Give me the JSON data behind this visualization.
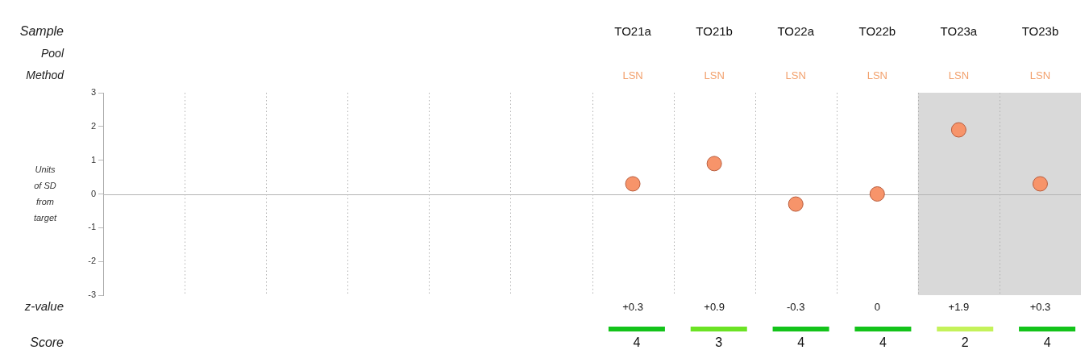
{
  "chart_data": [
    {
      "type": "scatter",
      "xlabel": "Sample",
      "ylabel": "Units of SD from target",
      "categories": [
        null,
        null,
        null,
        null,
        null,
        null,
        "TO21a",
        "TO21b",
        "TO22a",
        "TO22b",
        "TO23a",
        "TO23b"
      ],
      "series": [
        {
          "name": "z-value",
          "type": "scatter",
          "color": "#f7946a",
          "values": [
            null,
            null,
            null,
            null,
            null,
            null,
            0.3,
            0.9,
            -0.3,
            0,
            1.9,
            0.3
          ],
          "value_labels": [
            null,
            null,
            null,
            null,
            null,
            null,
            "+0.3",
            "+0.9",
            "-0.3",
            "0",
            "+1.9",
            "+0.3"
          ]
        }
      ],
      "ylim": [
        -3,
        3
      ],
      "yticks": [
        -3,
        -2,
        -1,
        0,
        1,
        2,
        3
      ],
      "grid": "x",
      "marker": "circle",
      "ref_lines": [
        {
          "axis": "y",
          "value": 0,
          "color": "#b4b4b4"
        }
      ],
      "bands": [
        {
          "axis": "x",
          "from": "TO23a",
          "to": "TO23b",
          "color": "#d9d9d9"
        }
      ],
      "annotations": [
        "Pool",
        "Method",
        "LSN",
        "LSN",
        "LSN",
        "LSN",
        "LSN",
        "LSN"
      ]
    },
    {
      "type": "other",
      "categories": [
        null,
        null,
        null,
        null,
        null,
        null,
        null,
        null,
        null,
        null,
        null,
        null
      ],
      "series": [
        {
          "name": "Score",
          "values": [
            null,
            null,
            null,
            null,
            null,
            null,
            4,
            3,
            4,
            4,
            2,
            4
          ],
          "colors": [
            null,
            null,
            null,
            null,
            null,
            null,
            "#13c31a",
            "#6be324",
            "#13c31a",
            "#13c31a",
            "#c4f25a",
            "#13c31a"
          ]
        }
      ],
      "data_labels": true
    }
  ]
}
